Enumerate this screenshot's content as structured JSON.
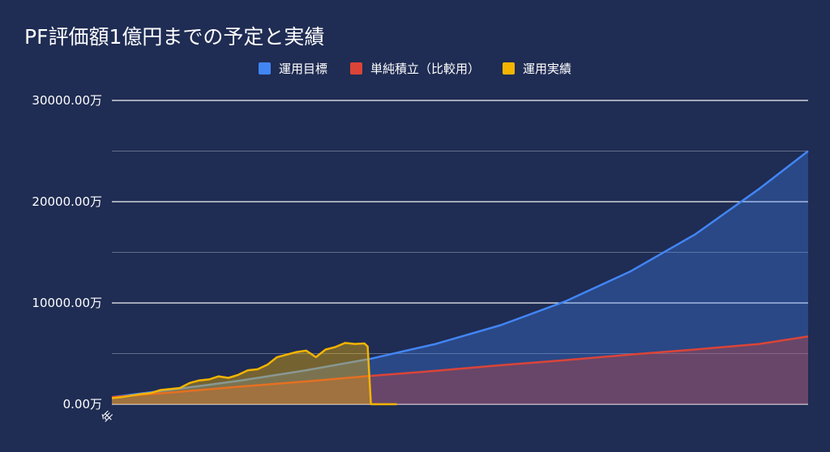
{
  "chart_data": {
    "type": "area",
    "title": "PF評価額1億円までの予定と実績",
    "xlabel": "",
    "ylabel": "",
    "x_tick_label": "年",
    "x_range": [
      0,
      215
    ],
    "ylim": [
      0,
      30000
    ],
    "y_ticks": [
      {
        "value": 0,
        "label": "0.00万"
      },
      {
        "value": 10000,
        "label": "10000.00万"
      },
      {
        "value": 20000,
        "label": "20000.00万"
      },
      {
        "value": 30000,
        "label": "30000.00万"
      }
    ],
    "grid": true,
    "legend_position": "top",
    "series": [
      {
        "name": "運用目標",
        "color": "#4285f4",
        "x": [
          0,
          20,
          40,
          60,
          80,
          100,
          120,
          140,
          160,
          180,
          200,
          215
        ],
        "values": [
          700,
          1500,
          2350,
          3350,
          4500,
          5950,
          7800,
          10150,
          13100,
          16750,
          21300,
          25000
        ]
      },
      {
        "name": "単純積立（比較用）",
        "color": "#db4437",
        "x": [
          0,
          20,
          40,
          60,
          80,
          100,
          120,
          140,
          160,
          180,
          200,
          215
        ],
        "values": [
          700,
          1200,
          1750,
          2250,
          2800,
          3300,
          3850,
          4350,
          4900,
          5400,
          5950,
          6700
        ]
      },
      {
        "name": "運用実績",
        "color": "#f4b400",
        "x": [
          0,
          3,
          6,
          9,
          12,
          15,
          18,
          21,
          24,
          27,
          30,
          33,
          36,
          39,
          42,
          45,
          48,
          51,
          54,
          57,
          60,
          63,
          66,
          69,
          72,
          75,
          78,
          79,
          80,
          88
        ],
        "values": [
          600,
          700,
          850,
          1000,
          1100,
          1400,
          1500,
          1600,
          2100,
          2350,
          2450,
          2750,
          2600,
          2900,
          3350,
          3450,
          3900,
          4650,
          4900,
          5150,
          5300,
          4650,
          5400,
          5650,
          6050,
          5950,
          6000,
          5700,
          0,
          0
        ]
      }
    ]
  }
}
